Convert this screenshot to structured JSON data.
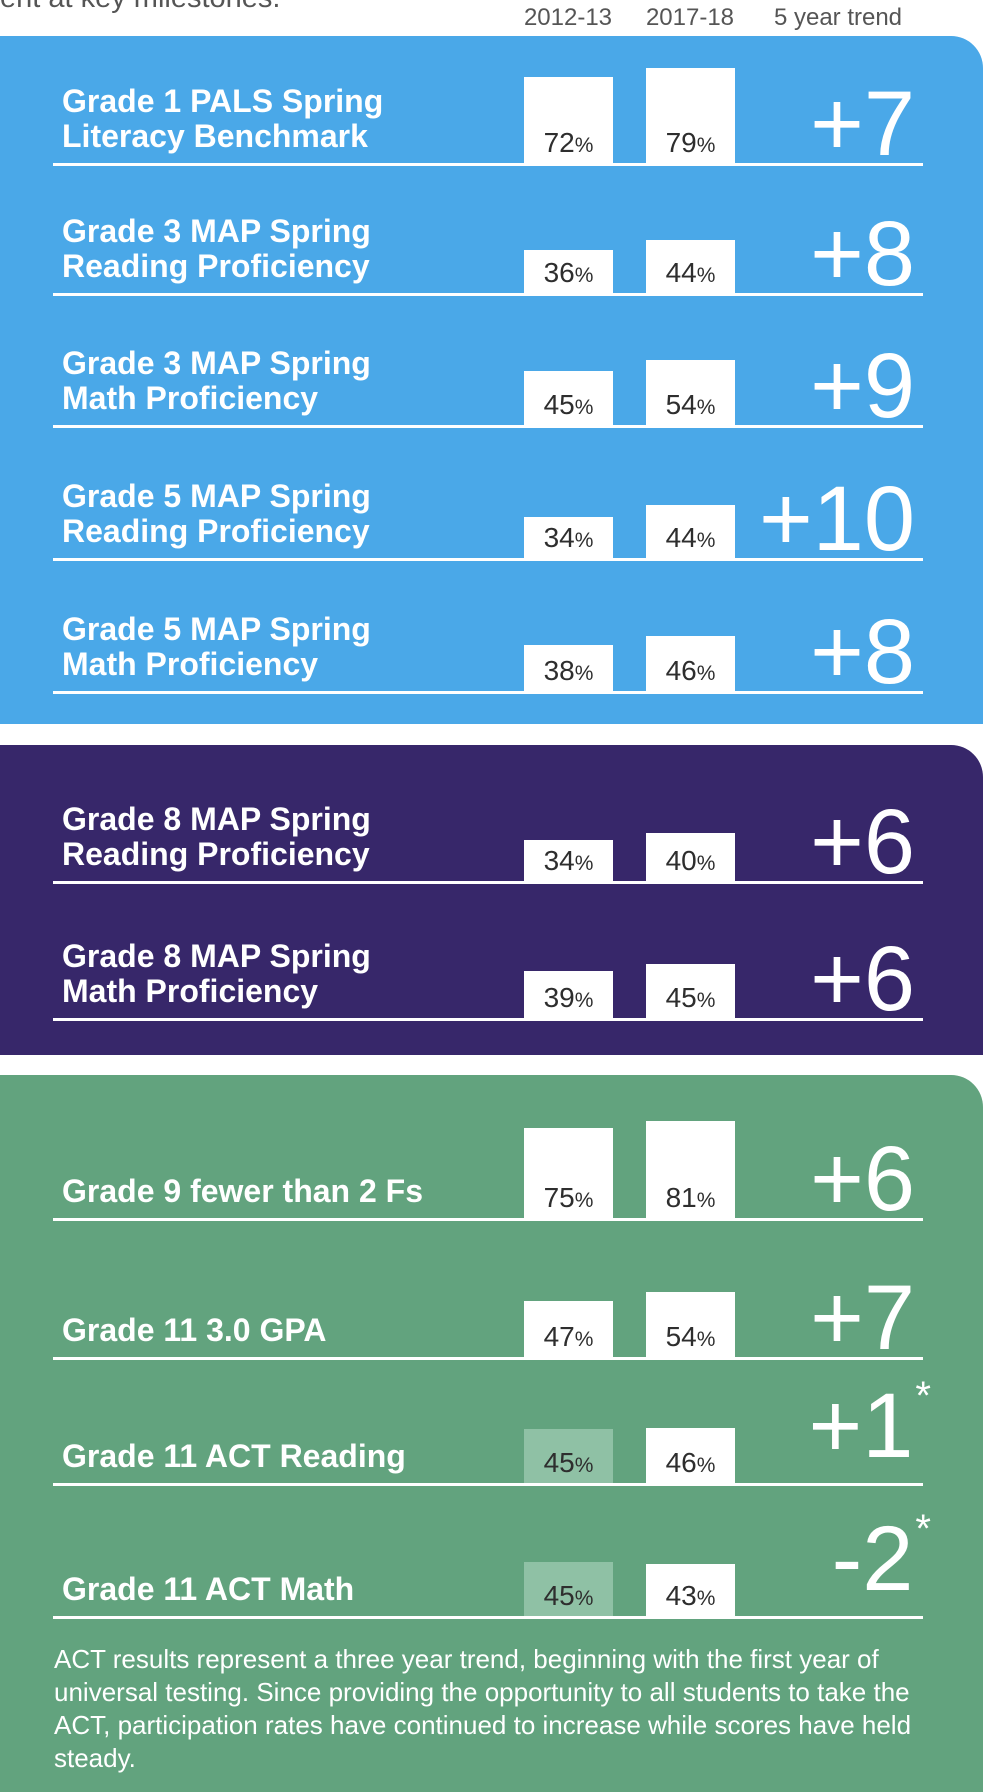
{
  "header": {
    "cut_text": "ent at key milestones.",
    "col_2012": "2012-13",
    "col_2017": "2017-18",
    "col_trend": "5 year trend"
  },
  "colors": {
    "blue_panel": "#4aa8e8",
    "purple_panel": "#37276a",
    "green_panel": "#62a37e",
    "bar_white": "#ffffff",
    "bar_faded": "#8fc1a5"
  },
  "chart_data": {
    "type": "bar",
    "series": [
      {
        "name": "2012-13",
        "values": [
          72,
          36,
          45,
          34,
          38,
          34,
          39,
          75,
          47,
          45,
          45
        ]
      },
      {
        "name": "2017-18",
        "values": [
          79,
          44,
          54,
          44,
          46,
          40,
          45,
          81,
          54,
          46,
          43
        ]
      }
    ],
    "categories": [
      "Grade 1 PALS Spring\nLiteracy Benchmark",
      "Grade 3 MAP Spring\nReading Proficiency",
      "Grade 3 MAP Spring\nMath Proficiency",
      "Grade 5 MAP Spring\nReading Proficiency",
      "Grade 5 MAP Spring\nMath Proficiency",
      "Grade 8 MAP Spring\nReading Proficiency",
      "Grade 8 MAP Spring\nMath Proficiency",
      "Grade 9 fewer than 2 Fs",
      "Grade 11 3.0 GPA",
      "Grade 11 ACT Reading",
      "Grade 11 ACT Math"
    ],
    "trend": [
      "+7",
      "+8",
      "+9",
      "+10",
      "+8",
      "+6",
      "+6",
      "+6",
      "+7",
      "+1",
      "-2"
    ],
    "trend_note": [
      "",
      "",
      "",
      "",
      "",
      "",
      "",
      "",
      "",
      "*",
      "*"
    ],
    "unit": "%",
    "faded_2012_rows": [
      9,
      10
    ]
  },
  "footnote": "ACT results represent a three year trend, beginning with the first year of universal testing. Since providing the opportunity to all students to take the ACT, participation rates have continued to increase while scores have held steady."
}
